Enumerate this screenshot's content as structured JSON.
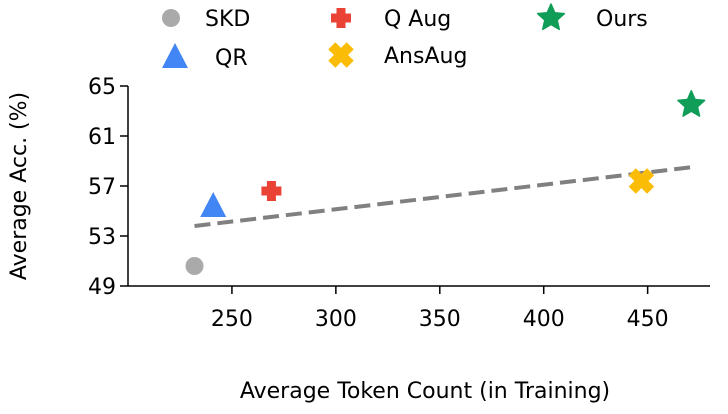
{
  "chart_data": {
    "type": "scatter",
    "title": "",
    "xlabel": "Average Token Count (in Training)",
    "ylabel": "Average Acc. (%)",
    "xlim": [
      200,
      480
    ],
    "ylim": [
      49,
      65
    ],
    "xticks": [
      250,
      300,
      350,
      400,
      450
    ],
    "yticks": [
      49,
      53,
      57,
      61,
      65
    ],
    "x_tick_labels": [
      "250",
      "300",
      "350",
      "400",
      "450"
    ],
    "y_tick_labels": [
      "49",
      "53",
      "57",
      "61",
      "65"
    ],
    "grid": false,
    "legend_position": "top",
    "series": [
      {
        "name": "SKD",
        "marker": "circle",
        "color": "#aaaaaa",
        "x": 232,
        "y": 50.6
      },
      {
        "name": "QR",
        "marker": "triangle",
        "color": "#4285f4",
        "x": 241,
        "y": 55.4
      },
      {
        "name": "Q Aug",
        "marker": "plus",
        "color": "#ea4335",
        "x": 269,
        "y": 56.6
      },
      {
        "name": "AnsAug",
        "marker": "cross",
        "color": "#fbbc05",
        "x": 447,
        "y": 57.4
      },
      {
        "name": "Ours",
        "marker": "star",
        "color": "#0f9d58",
        "x": 471,
        "y": 63.5
      }
    ],
    "trendline": {
      "style": "dashed",
      "color": "#808080",
      "x": [
        232,
        471
      ],
      "y": [
        53.8,
        58.5
      ]
    }
  }
}
